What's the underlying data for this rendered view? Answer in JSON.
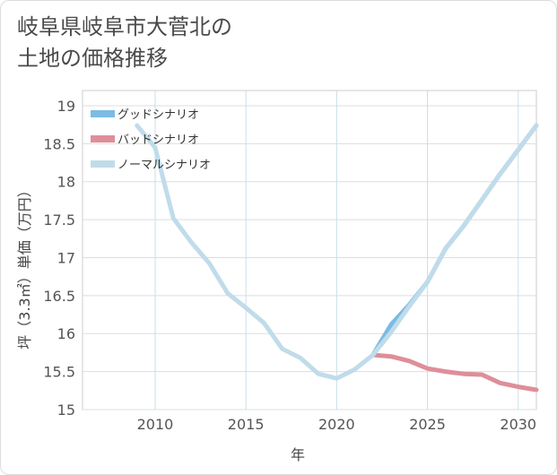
{
  "title_lines": [
    "岐阜県岐阜市大菅北の",
    "土地の価格推移"
  ],
  "chart_data": {
    "type": "line",
    "title": "岐阜県岐阜市大菅北の土地の価格推移",
    "xlabel": "年",
    "ylabel": "坪（3.3㎡）単価（万円）",
    "xlim": [
      2006,
      2031
    ],
    "ylim": [
      15,
      19.2
    ],
    "xticks": [
      2010,
      2015,
      2020,
      2025,
      2030
    ],
    "yticks": [
      15,
      15.5,
      16,
      16.5,
      17,
      17.5,
      18,
      18.5,
      19
    ],
    "legend_position": "top-left",
    "series": [
      {
        "name": "グッドシナリオ",
        "color": "#7cbbe4",
        "x": [
          2022,
          2023,
          2024,
          2025,
          2026,
          2027,
          2028,
          2029,
          2030,
          2031
        ],
        "y": [
          15.72,
          16.12,
          16.38,
          16.68,
          17.12,
          17.42,
          17.76,
          18.1,
          18.42,
          18.74
        ]
      },
      {
        "name": "バッドシナリオ",
        "color": "#de8e9a",
        "x": [
          2022,
          2023,
          2024,
          2025,
          2026,
          2027,
          2028,
          2029,
          2030,
          2031
        ],
        "y": [
          15.72,
          15.7,
          15.64,
          15.54,
          15.5,
          15.47,
          15.46,
          15.35,
          15.3,
          15.26
        ]
      },
      {
        "name": "ノーマルシナリオ",
        "color": "#c0dcea",
        "x": [
          2009,
          2010,
          2011,
          2012,
          2013,
          2014,
          2015,
          2016,
          2017,
          2018,
          2019,
          2020,
          2021,
          2022,
          2023,
          2024,
          2025,
          2026,
          2027,
          2028,
          2029,
          2030,
          2031
        ],
        "y": [
          18.74,
          18.45,
          17.52,
          17.2,
          16.92,
          16.53,
          16.34,
          16.14,
          15.8,
          15.68,
          15.47,
          15.41,
          15.53,
          15.72,
          16.02,
          16.36,
          16.68,
          17.12,
          17.42,
          17.76,
          18.1,
          18.42,
          18.74
        ]
      }
    ]
  }
}
